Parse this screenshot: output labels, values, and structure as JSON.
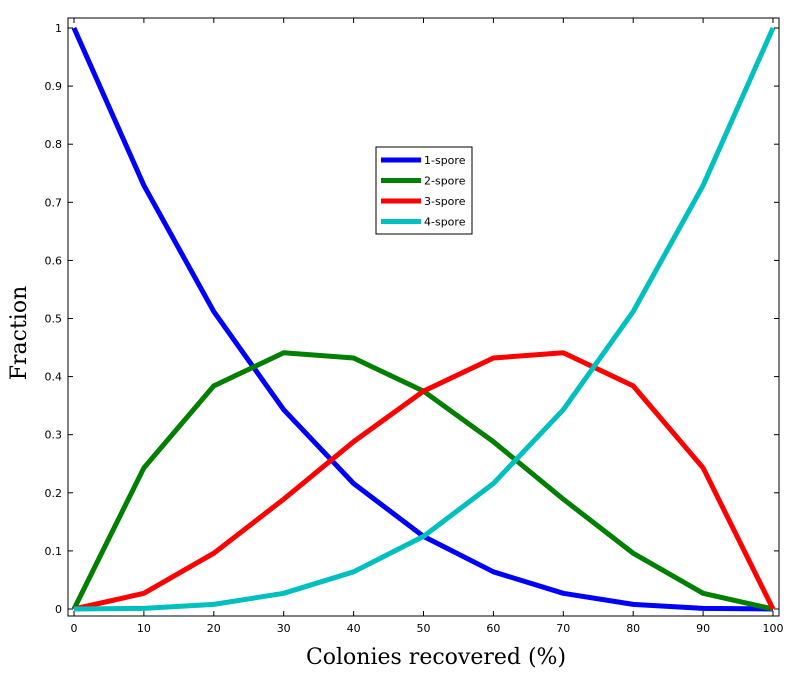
{
  "chart_data": {
    "type": "line",
    "title": "",
    "xlabel": "Colonies recovered  (%)",
    "ylabel": "Fraction",
    "xlim": [
      0,
      100
    ],
    "ylim": [
      0,
      1
    ],
    "xticks": [
      0,
      10,
      20,
      30,
      40,
      50,
      60,
      70,
      80,
      90,
      100
    ],
    "yticks": [
      0,
      0.1,
      0.2,
      0.3,
      0.4,
      0.5,
      0.6,
      0.7,
      0.8,
      0.9,
      1
    ],
    "xtick_labels": [
      "0",
      "10",
      "20",
      "30",
      "40",
      "50",
      "60",
      "70",
      "80",
      "90",
      "100"
    ],
    "ytick_labels": [
      "0",
      "0.1",
      "0.2",
      "0.3",
      "0.4",
      "0.5",
      "0.6",
      "0.7",
      "0.8",
      "0.9",
      "1"
    ],
    "grid": false,
    "legend_position": "upper-center",
    "x": [
      0,
      10,
      20,
      30,
      40,
      50,
      60,
      70,
      80,
      90,
      100
    ],
    "series": [
      {
        "name": "1-spore",
        "color": "#0000ff",
        "values": [
          1,
          0.729,
          0.512,
          0.343,
          0.216,
          0.125,
          0.064,
          0.027,
          0.008,
          0.001,
          0
        ]
      },
      {
        "name": "2-spore",
        "color": "#007f00",
        "values": [
          0,
          0.243,
          0.384,
          0.441,
          0.432,
          0.375,
          0.288,
          0.189,
          0.096,
          0.027,
          0
        ]
      },
      {
        "name": "3-spore",
        "color": "#ff0000",
        "values": [
          0,
          0.027,
          0.096,
          0.189,
          0.288,
          0.375,
          0.432,
          0.441,
          0.384,
          0.243,
          0
        ]
      },
      {
        "name": "4-spore",
        "color": "#00bfbf",
        "values": [
          0,
          0.001,
          0.008,
          0.027,
          0.064,
          0.125,
          0.216,
          0.343,
          0.512,
          0.729,
          1
        ]
      }
    ]
  }
}
